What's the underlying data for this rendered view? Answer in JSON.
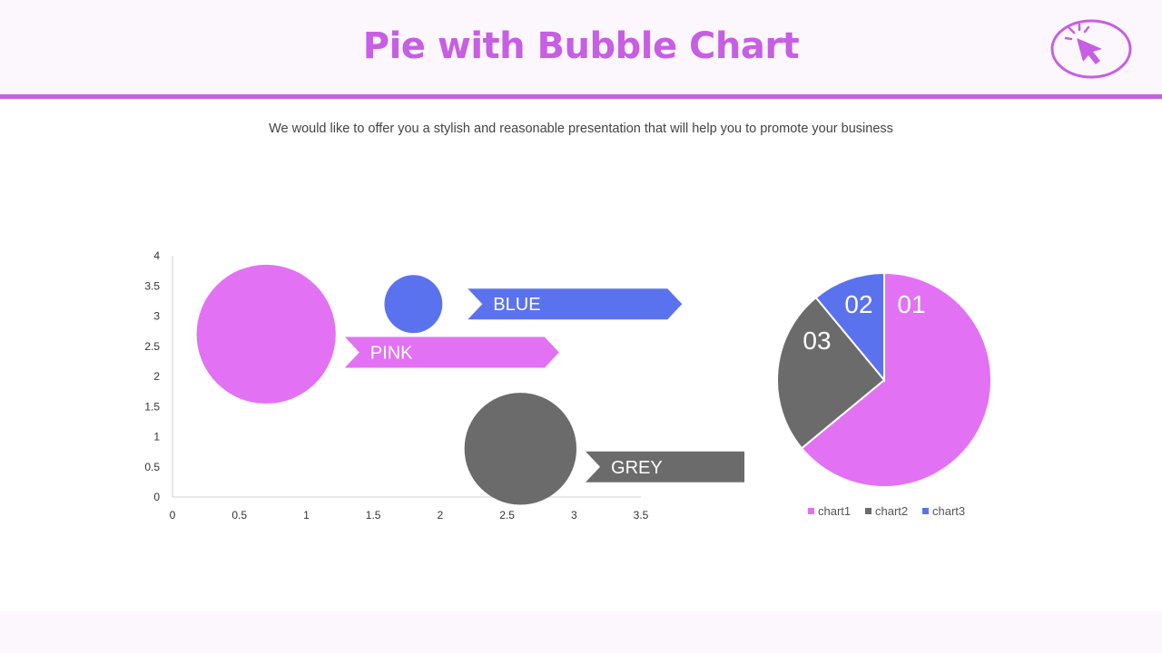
{
  "page": {
    "title": "Pie with Bubble Chart",
    "subtitle": "We would like to offer you a stylish and reasonable presentation that will help you to promote your business",
    "icon": "cursor-click-icon",
    "colors": {
      "accent": "#c75ee3",
      "pink": "#e272f3",
      "blue": "#5b72ef",
      "grey": "#6b6b6b",
      "header_bg": "#fcf7fd"
    }
  },
  "chart_data": [
    {
      "type": "scatter",
      "subtype": "bubble",
      "xlim": [
        0,
        3.5
      ],
      "ylim": [
        0,
        4
      ],
      "xticks": [
        "0",
        "0.5",
        "1",
        "1.5",
        "2",
        "2.5",
        "3",
        "3.5"
      ],
      "yticks": [
        "0",
        "0.5",
        "1",
        "1.5",
        "2",
        "2.5",
        "3",
        "3.5",
        "4"
      ],
      "grid": false,
      "series": [
        {
          "name": "PINK",
          "x": 0.7,
          "y": 2.7,
          "size": 3.6,
          "color": "#e272f3"
        },
        {
          "name": "BLUE",
          "x": 1.8,
          "y": 3.2,
          "size": 1.5,
          "color": "#5b72ef"
        },
        {
          "name": "GREY",
          "x": 2.6,
          "y": 0.8,
          "size": 2.9,
          "color": "#6b6b6b"
        }
      ]
    },
    {
      "type": "pie",
      "slices": [
        {
          "name": "chart1",
          "label": "01",
          "value": 64,
          "color": "#e272f3"
        },
        {
          "name": "chart2",
          "label": "03",
          "value": 25,
          "color": "#6b6b6b"
        },
        {
          "name": "chart3",
          "label": "02",
          "value": 11,
          "color": "#5b72ef"
        }
      ],
      "legend": "bottom"
    }
  ]
}
